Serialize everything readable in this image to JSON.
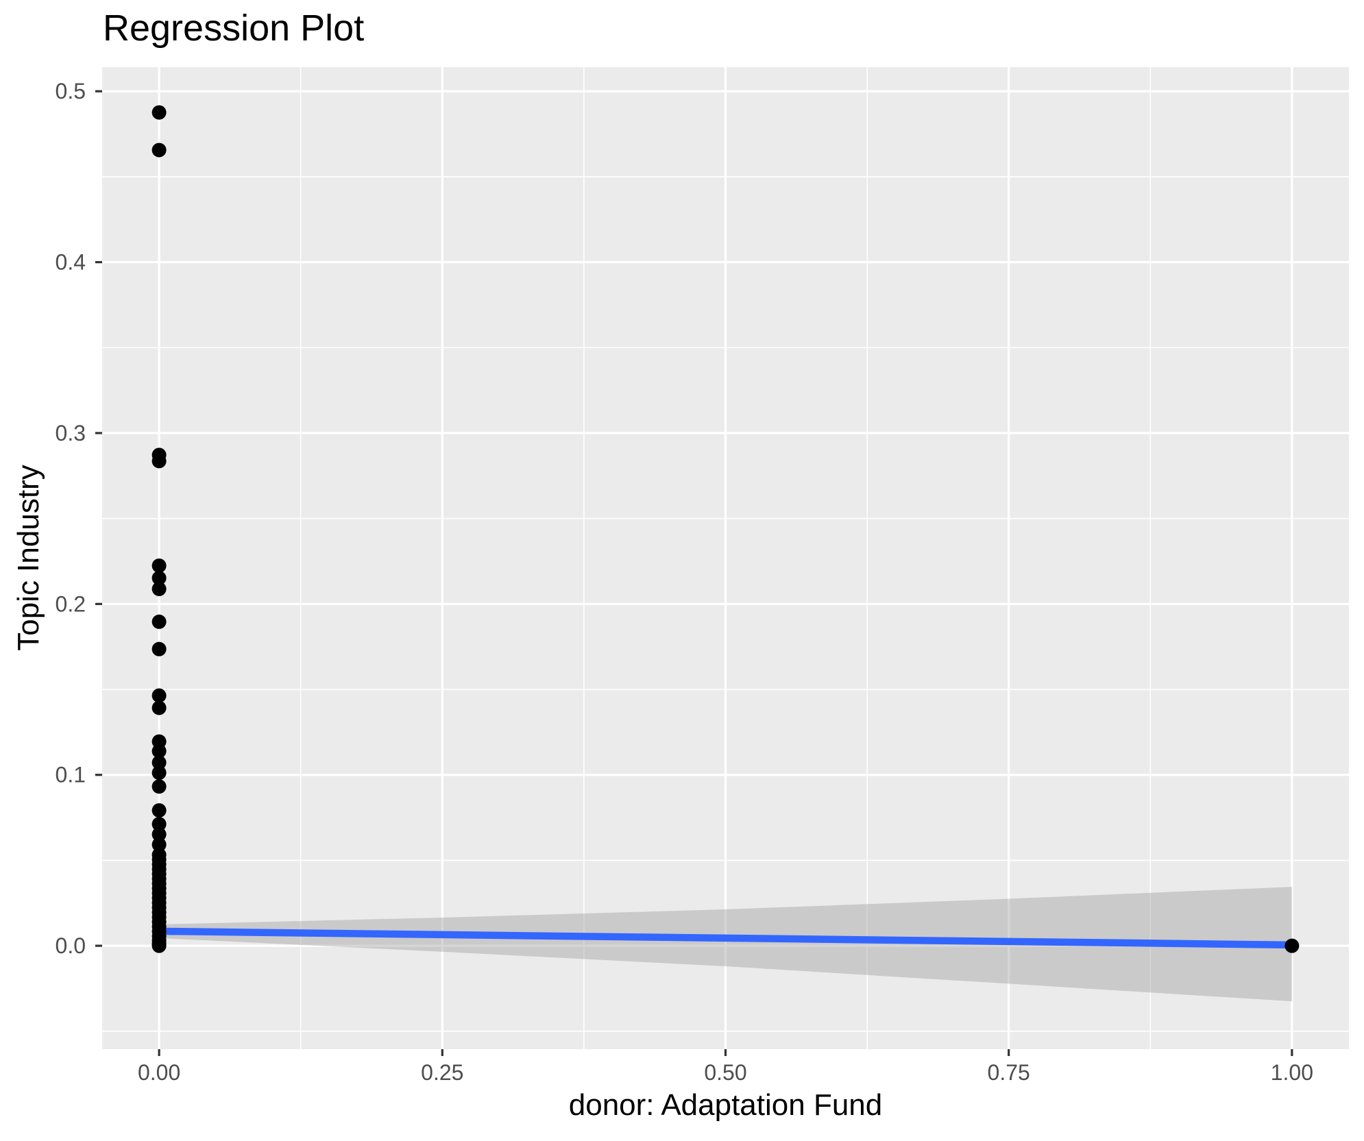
{
  "title": "Regression Plot",
  "chart_data": {
    "type": "scatter",
    "title": "Regression Plot",
    "xlabel": "donor: Adaptation Fund",
    "ylabel": "Topic Industry",
    "xlim": [
      -0.0503,
      1.0503
    ],
    "ylim": [
      -0.0605,
      0.5141
    ],
    "x_ticks": [
      0.0,
      0.25,
      0.5,
      0.75,
      1.0
    ],
    "x_tick_labels": [
      "0.00",
      "0.25",
      "0.50",
      "0.75",
      "1.00"
    ],
    "y_ticks": [
      0.0,
      0.1,
      0.2,
      0.3,
      0.4,
      0.5
    ],
    "y_tick_labels": [
      "0.0",
      "0.1",
      "0.2",
      "0.3",
      "0.4",
      "0.5"
    ],
    "x_minor_breaks": [
      0.125,
      0.375,
      0.625,
      0.875
    ],
    "y_minor_breaks": [
      -0.05,
      0.05,
      0.15,
      0.25,
      0.35,
      0.45
    ],
    "grid": true,
    "legend": "none",
    "panel_bg_color": "#EBEBEB",
    "grid_color": "#FFFFFF",
    "tick_mark_color": "#333333",
    "tick_label_color": "#4D4D4D",
    "point_color": "#000000",
    "series": [
      {
        "name": "observations",
        "points": [
          [
            0,
            0.4876
          ],
          [
            0,
            0.4656
          ],
          [
            0,
            0.2872
          ],
          [
            0,
            0.2836
          ],
          [
            0,
            0.2224
          ],
          [
            0,
            0.2152
          ],
          [
            0,
            0.2088
          ],
          [
            0,
            0.1896
          ],
          [
            0,
            0.1736
          ],
          [
            0,
            0.1464
          ],
          [
            0,
            0.1392
          ],
          [
            0,
            0.1195
          ],
          [
            0,
            0.1139
          ],
          [
            0,
            0.1072
          ],
          [
            0,
            0.1012
          ],
          [
            0,
            0.0932
          ],
          [
            0,
            0.0792
          ],
          [
            0,
            0.0712
          ],
          [
            0,
            0.0652
          ],
          [
            0,
            0.0592
          ],
          [
            0,
            0.0532
          ],
          [
            0,
            0.0504
          ],
          [
            0,
            0.0476
          ],
          [
            0,
            0.0448
          ],
          [
            0,
            0.042
          ],
          [
            0,
            0.0392
          ],
          [
            0,
            0.0364
          ],
          [
            0,
            0.0336
          ],
          [
            0,
            0.0308
          ],
          [
            0,
            0.028
          ],
          [
            0,
            0.0252
          ],
          [
            0,
            0.0224
          ],
          [
            0,
            0.0196
          ],
          [
            0,
            0.0168
          ],
          [
            0,
            0.014
          ],
          [
            0,
            0.0112
          ],
          [
            0,
            0.0084
          ],
          [
            0,
            0.0056
          ],
          [
            0,
            0.0032
          ],
          [
            0,
            0.0016
          ],
          [
            0,
            0.0006
          ],
          [
            0,
            0.0
          ],
          [
            1,
            0.0
          ]
        ]
      }
    ],
    "regression_line": {
      "color": "#3366FF",
      "x": [
        0,
        1
      ],
      "y": [
        0.0085,
        0.0005
      ]
    },
    "confidence_band": {
      "color": "#999999",
      "opacity": 0.4,
      "x": [
        0,
        0.25,
        0.5,
        0.75,
        1.0
      ],
      "upper": [
        0.0125,
        0.0165,
        0.0213,
        0.0275,
        0.0345
      ],
      "lower": [
        0.0045,
        -0.0035,
        -0.012,
        -0.0222,
        -0.0325
      ]
    }
  }
}
